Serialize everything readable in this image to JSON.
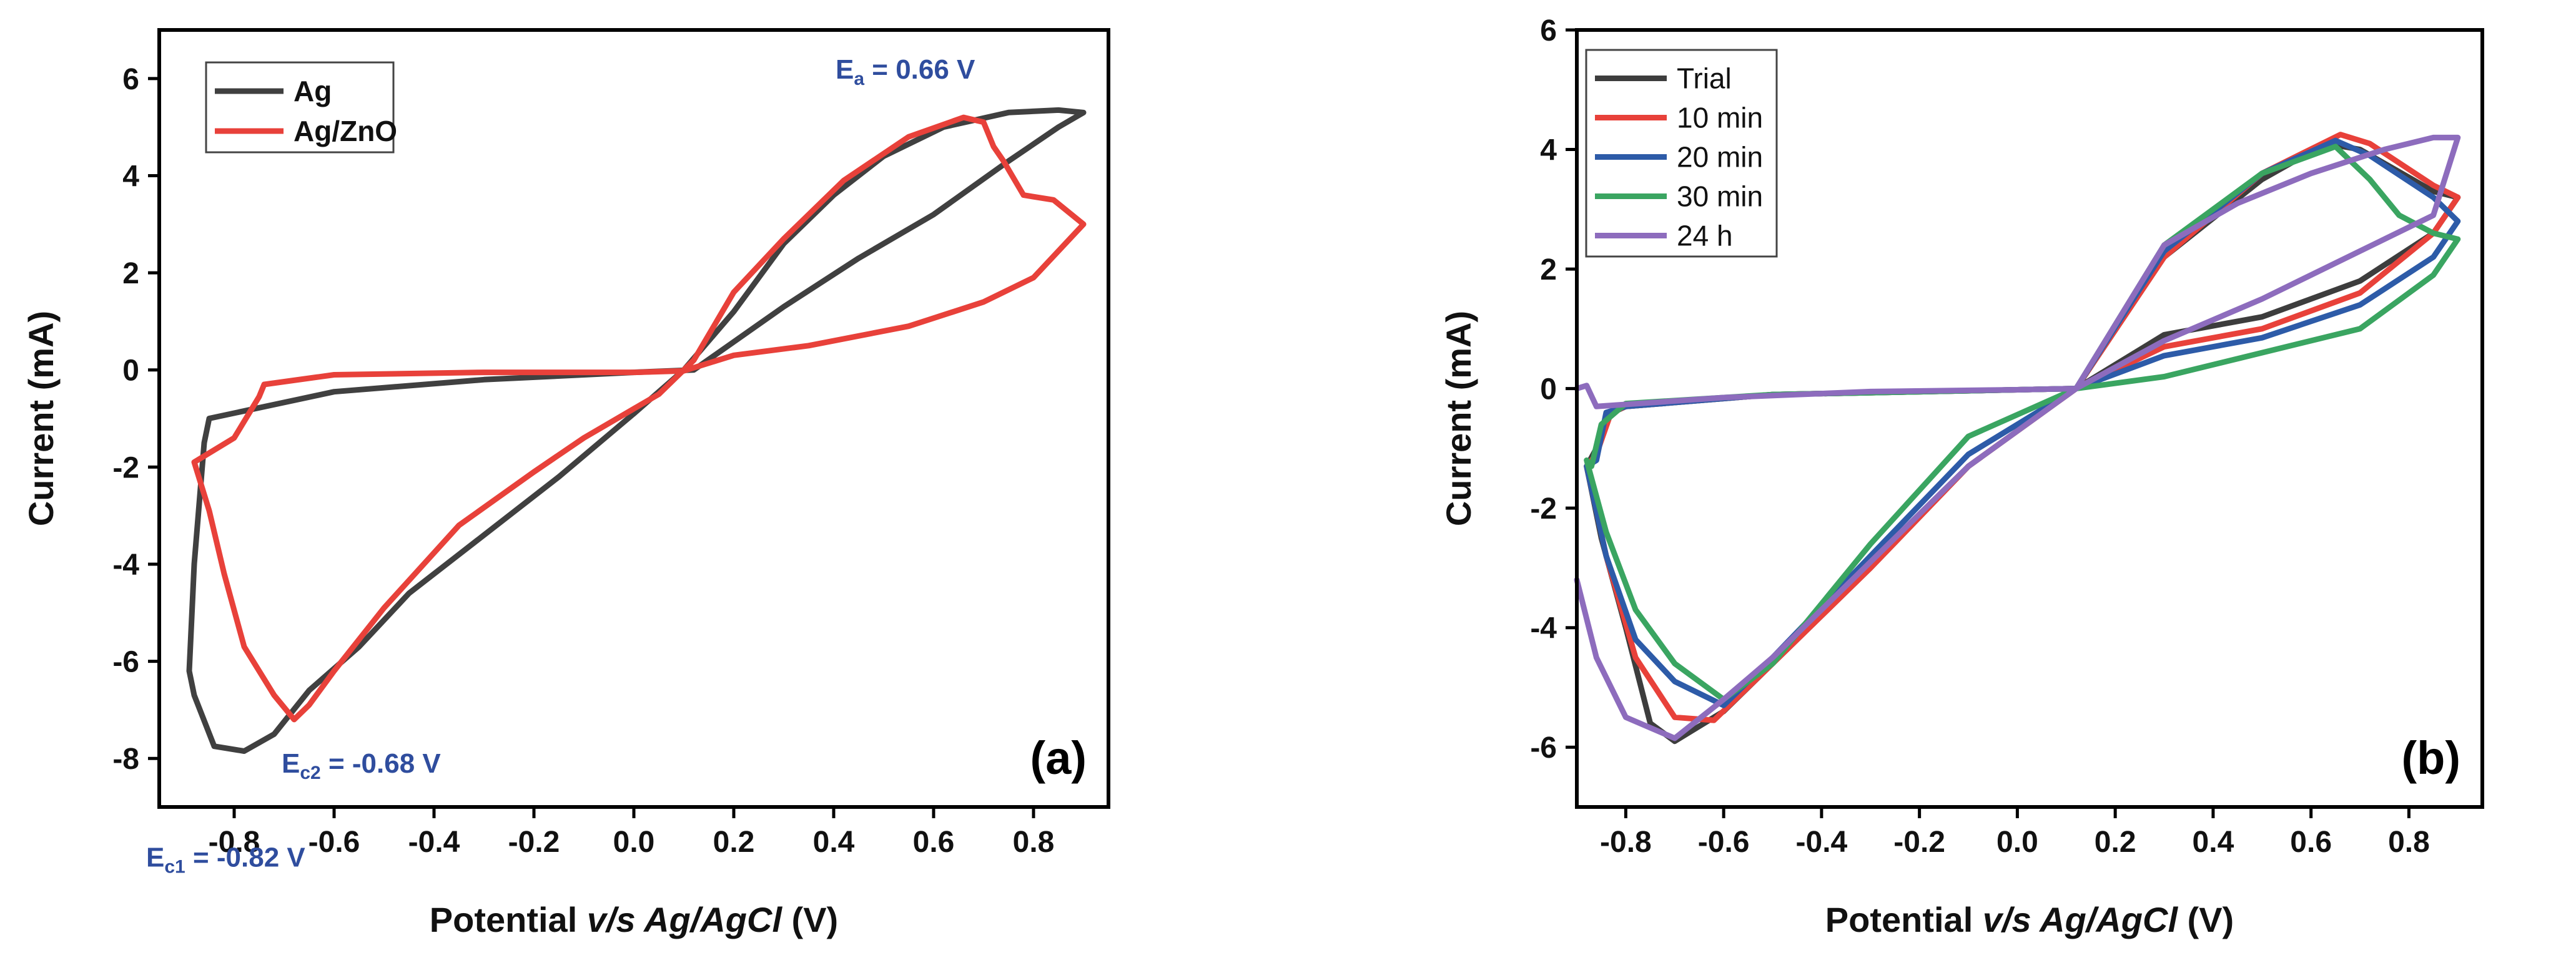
{
  "chart_data": [
    {
      "type": "line",
      "panel_label": "(a)",
      "ylabel": "Current (mA)",
      "xlabel": {
        "prefix": "Potential ",
        "italic": "v/s Ag/AgCl",
        "suffix": " (V)"
      },
      "xlim": [
        -0.95,
        0.95
      ],
      "ylim": [
        -9,
        7
      ],
      "xticks": [
        -0.8,
        -0.6,
        -0.4,
        -0.2,
        0.0,
        0.2,
        0.4,
        0.6,
        0.8
      ],
      "xtick_labels": [
        "-0.8",
        "-0.6",
        "-0.4",
        "-0.2",
        "0.0",
        "0.2",
        "0.4",
        "0.6",
        "0.8"
      ],
      "yticks": [
        -8,
        -6,
        -4,
        -2,
        0,
        2,
        4,
        6
      ],
      "ytick_labels": [
        "-8",
        "-6",
        "-4",
        "-2",
        "0",
        "2",
        "4",
        "6"
      ],
      "legend_style": "bold",
      "series": [
        {
          "name": "Ag",
          "color": "#404040",
          "points": [
            [
              -0.85,
              -1.0
            ],
            [
              -0.6,
              -0.45
            ],
            [
              -0.3,
              -0.2
            ],
            [
              0.0,
              -0.05
            ],
            [
              0.12,
              0.0
            ],
            [
              0.3,
              1.3
            ],
            [
              0.45,
              2.3
            ],
            [
              0.6,
              3.2
            ],
            [
              0.75,
              4.3
            ],
            [
              0.85,
              5.0
            ],
            [
              0.9,
              5.3
            ],
            [
              0.85,
              5.35
            ],
            [
              0.75,
              5.3
            ],
            [
              0.62,
              5.0
            ],
            [
              0.5,
              4.4
            ],
            [
              0.4,
              3.6
            ],
            [
              0.3,
              2.6
            ],
            [
              0.2,
              1.2
            ],
            [
              0.1,
              0.0
            ],
            [
              0.0,
              -0.9
            ],
            [
              -0.15,
              -2.2
            ],
            [
              -0.3,
              -3.4
            ],
            [
              -0.45,
              -4.6
            ],
            [
              -0.55,
              -5.7
            ],
            [
              -0.65,
              -6.6
            ],
            [
              -0.72,
              -7.5
            ],
            [
              -0.78,
              -7.85
            ],
            [
              -0.84,
              -7.75
            ],
            [
              -0.88,
              -6.7
            ],
            [
              -0.89,
              -6.2
            ],
            [
              -0.88,
              -4.0
            ],
            [
              -0.86,
              -1.5
            ],
            [
              -0.85,
              -1.0
            ]
          ]
        },
        {
          "name": "Ag/ZnO",
          "color": "#e8413a",
          "points": [
            [
              -0.88,
              -1.9
            ],
            [
              -0.8,
              -1.4
            ],
            [
              -0.75,
              -0.55
            ],
            [
              -0.74,
              -0.3
            ],
            [
              -0.6,
              -0.1
            ],
            [
              -0.3,
              -0.05
            ],
            [
              0.0,
              -0.05
            ],
            [
              0.1,
              -0.02
            ],
            [
              0.2,
              0.3
            ],
            [
              0.35,
              0.5
            ],
            [
              0.55,
              0.9
            ],
            [
              0.7,
              1.4
            ],
            [
              0.8,
              1.9
            ],
            [
              0.9,
              3.0
            ],
            [
              0.84,
              3.5
            ],
            [
              0.78,
              3.6
            ],
            [
              0.74,
              4.3
            ],
            [
              0.72,
              4.6
            ],
            [
              0.7,
              5.1
            ],
            [
              0.66,
              5.2
            ],
            [
              0.55,
              4.8
            ],
            [
              0.42,
              3.9
            ],
            [
              0.3,
              2.7
            ],
            [
              0.2,
              1.6
            ],
            [
              0.12,
              0.2
            ],
            [
              0.05,
              -0.5
            ],
            [
              -0.1,
              -1.4
            ],
            [
              -0.2,
              -2.1
            ],
            [
              -0.35,
              -3.2
            ],
            [
              -0.5,
              -4.9
            ],
            [
              -0.6,
              -6.2
            ],
            [
              -0.65,
              -6.9
            ],
            [
              -0.68,
              -7.2
            ],
            [
              -0.72,
              -6.7
            ],
            [
              -0.78,
              -5.7
            ],
            [
              -0.82,
              -4.2
            ],
            [
              -0.85,
              -2.9
            ],
            [
              -0.88,
              -1.9
            ]
          ]
        }
      ],
      "annotations": [
        {
          "main": "E",
          "sub": "a",
          "rest": " = 0.66 V"
        },
        {
          "main": "E",
          "sub": "c2",
          "rest": " = -0.68 V"
        },
        {
          "main": "E",
          "sub": "c1",
          "rest": " = -0.82 V"
        }
      ]
    },
    {
      "type": "line",
      "panel_label": "(b)",
      "ylabel": "Current (mA)",
      "xlabel": {
        "prefix": "Potential ",
        "italic": "v/s Ag/AgCl",
        "suffix": " (V)"
      },
      "xlim": [
        -0.9,
        0.95
      ],
      "ylim": [
        -7,
        6
      ],
      "xticks": [
        -0.8,
        -0.6,
        -0.4,
        -0.2,
        0.0,
        0.2,
        0.4,
        0.6,
        0.8
      ],
      "xtick_labels": [
        "-0.8",
        "-0.6",
        "-0.4",
        "-0.2",
        "0.0",
        "0.2",
        "0.4",
        "0.6",
        "0.8"
      ],
      "yticks": [
        -6,
        -4,
        -2,
        0,
        2,
        4,
        6
      ],
      "ytick_labels": [
        "-6",
        "-4",
        "-2",
        "0",
        "2",
        "4",
        "6"
      ],
      "legend_style": "normal",
      "series": [
        {
          "name": "Trial",
          "color": "#3d3d3d",
          "points": [
            [
              -0.88,
              -1.3
            ],
            [
              -0.86,
              -1.0
            ],
            [
              -0.84,
              -0.45
            ],
            [
              -0.8,
              -0.3
            ],
            [
              -0.5,
              -0.1
            ],
            [
              0.0,
              -0.02
            ],
            [
              0.12,
              0.0
            ],
            [
              0.3,
              0.9
            ],
            [
              0.5,
              1.2
            ],
            [
              0.7,
              1.8
            ],
            [
              0.85,
              2.6
            ],
            [
              0.9,
              3.2
            ],
            [
              0.85,
              3.3
            ],
            [
              0.7,
              4.0
            ],
            [
              0.63,
              4.1
            ],
            [
              0.5,
              3.5
            ],
            [
              0.3,
              2.2
            ],
            [
              0.12,
              0.0
            ],
            [
              -0.1,
              -1.3
            ],
            [
              -0.3,
              -3.0
            ],
            [
              -0.5,
              -4.6
            ],
            [
              -0.6,
              -5.4
            ],
            [
              -0.7,
              -5.9
            ],
            [
              -0.75,
              -5.6
            ],
            [
              -0.8,
              -4.0
            ],
            [
              -0.85,
              -2.5
            ],
            [
              -0.88,
              -1.3
            ]
          ]
        },
        {
          "name": "10 min",
          "color": "#e8413a",
          "points": [
            [
              -0.88,
              -1.3
            ],
            [
              -0.86,
              -1.1
            ],
            [
              -0.83,
              -0.4
            ],
            [
              -0.8,
              -0.3
            ],
            [
              -0.5,
              -0.1
            ],
            [
              0.0,
              -0.02
            ],
            [
              0.12,
              0.0
            ],
            [
              0.3,
              0.7
            ],
            [
              0.5,
              1.0
            ],
            [
              0.7,
              1.6
            ],
            [
              0.85,
              2.6
            ],
            [
              0.9,
              3.2
            ],
            [
              0.85,
              3.4
            ],
            [
              0.72,
              4.1
            ],
            [
              0.66,
              4.25
            ],
            [
              0.5,
              3.6
            ],
            [
              0.3,
              2.2
            ],
            [
              0.12,
              0.0
            ],
            [
              -0.1,
              -1.3
            ],
            [
              -0.3,
              -3.0
            ],
            [
              -0.5,
              -4.6
            ],
            [
              -0.62,
              -5.55
            ],
            [
              -0.7,
              -5.5
            ],
            [
              -0.78,
              -4.5
            ],
            [
              -0.84,
              -2.8
            ],
            [
              -0.88,
              -1.3
            ]
          ]
        },
        {
          "name": "20 min",
          "color": "#2d5ba8",
          "points": [
            [
              -0.88,
              -1.3
            ],
            [
              -0.86,
              -1.2
            ],
            [
              -0.84,
              -0.4
            ],
            [
              -0.8,
              -0.3
            ],
            [
              -0.5,
              -0.1
            ],
            [
              0.0,
              -0.02
            ],
            [
              0.12,
              0.0
            ],
            [
              0.3,
              0.55
            ],
            [
              0.5,
              0.85
            ],
            [
              0.7,
              1.4
            ],
            [
              0.85,
              2.2
            ],
            [
              0.9,
              2.8
            ],
            [
              0.85,
              3.2
            ],
            [
              0.72,
              3.9
            ],
            [
              0.65,
              4.15
            ],
            [
              0.5,
              3.6
            ],
            [
              0.3,
              2.3
            ],
            [
              0.12,
              0.0
            ],
            [
              -0.1,
              -1.1
            ],
            [
              -0.3,
              -2.8
            ],
            [
              -0.5,
              -4.5
            ],
            [
              -0.6,
              -5.3
            ],
            [
              -0.7,
              -4.9
            ],
            [
              -0.78,
              -4.2
            ],
            [
              -0.84,
              -2.8
            ],
            [
              -0.88,
              -1.3
            ]
          ]
        },
        {
          "name": "30 min",
          "color": "#3aa561",
          "points": [
            [
              -0.88,
              -1.2
            ],
            [
              -0.87,
              -1.3
            ],
            [
              -0.85,
              -0.6
            ],
            [
              -0.8,
              -0.25
            ],
            [
              -0.5,
              -0.1
            ],
            [
              0.0,
              -0.02
            ],
            [
              0.12,
              0.0
            ],
            [
              0.3,
              0.2
            ],
            [
              0.45,
              0.5
            ],
            [
              0.7,
              1.0
            ],
            [
              0.85,
              1.9
            ],
            [
              0.9,
              2.5
            ],
            [
              0.85,
              2.6
            ],
            [
              0.78,
              2.9
            ],
            [
              0.72,
              3.5
            ],
            [
              0.65,
              4.05
            ],
            [
              0.5,
              3.6
            ],
            [
              0.3,
              2.4
            ],
            [
              0.12,
              0.0
            ],
            [
              -0.1,
              -0.8
            ],
            [
              -0.3,
              -2.6
            ],
            [
              -0.5,
              -4.6
            ],
            [
              -0.6,
              -5.2
            ],
            [
              -0.7,
              -4.6
            ],
            [
              -0.78,
              -3.7
            ],
            [
              -0.84,
              -2.4
            ],
            [
              -0.88,
              -1.2
            ]
          ]
        },
        {
          "name": "24 h",
          "color": "#8d6cbd",
          "points": [
            [
              -0.9,
              0.0
            ],
            [
              -0.88,
              0.05
            ],
            [
              -0.86,
              -0.3
            ],
            [
              -0.6,
              -0.15
            ],
            [
              -0.3,
              -0.05
            ],
            [
              0.0,
              -0.02
            ],
            [
              0.12,
              0.0
            ],
            [
              0.3,
              0.8
            ],
            [
              0.5,
              1.5
            ],
            [
              0.7,
              2.3
            ],
            [
              0.85,
              2.9
            ],
            [
              0.9,
              4.2
            ],
            [
              0.85,
              4.2
            ],
            [
              0.75,
              4.0
            ],
            [
              0.6,
              3.6
            ],
            [
              0.45,
              3.1
            ],
            [
              0.3,
              2.4
            ],
            [
              0.12,
              0.0
            ],
            [
              -0.1,
              -1.3
            ],
            [
              -0.3,
              -2.9
            ],
            [
              -0.5,
              -4.5
            ],
            [
              -0.6,
              -5.2
            ],
            [
              -0.7,
              -5.85
            ],
            [
              -0.8,
              -5.5
            ],
            [
              -0.86,
              -4.5
            ],
            [
              -0.9,
              -3.2
            ]
          ]
        }
      ],
      "annotations": []
    }
  ]
}
